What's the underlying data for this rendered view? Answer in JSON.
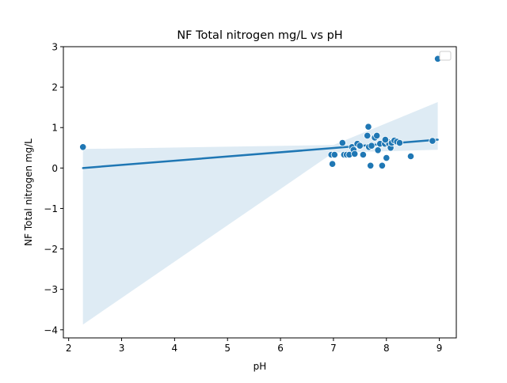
{
  "chart_data": {
    "type": "scatter",
    "title": "NF Total nitrogen mg/L vs pH",
    "xlabel": "pH",
    "ylabel": "NF Total nitrogen mg/L",
    "xlim": [
      1.9,
      9.32
    ],
    "ylim": [
      -4.2,
      3.0
    ],
    "x_ticks": [
      2,
      3,
      4,
      5,
      6,
      7,
      8,
      9
    ],
    "y_ticks": [
      -4,
      -3,
      -2,
      -1,
      0,
      1,
      2,
      3
    ],
    "x_tick_labels": [
      "2",
      "3",
      "4",
      "5",
      "6",
      "7",
      "8",
      "9"
    ],
    "y_tick_labels": [
      "−4",
      "−3",
      "−2",
      "−1",
      "0",
      "1",
      "2",
      "3"
    ],
    "grid": false,
    "legend": "top-right, empty",
    "colors": {
      "points": "#1f77b4",
      "line": "#1f77b4",
      "band": "#1f77b4"
    },
    "points": [
      [
        2.27,
        0.52
      ],
      [
        8.97,
        2.7
      ],
      [
        8.87,
        0.67
      ],
      [
        8.46,
        0.29
      ],
      [
        6.96,
        0.33
      ],
      [
        6.98,
        0.1
      ],
      [
        7.02,
        0.33
      ],
      [
        7.17,
        0.62
      ],
      [
        7.2,
        0.33
      ],
      [
        7.25,
        0.33
      ],
      [
        7.3,
        0.33
      ],
      [
        7.35,
        0.52
      ],
      [
        7.38,
        0.45
      ],
      [
        7.4,
        0.35
      ],
      [
        7.45,
        0.6
      ],
      [
        7.5,
        0.55
      ],
      [
        7.56,
        0.33
      ],
      [
        7.64,
        0.8
      ],
      [
        7.66,
        1.02
      ],
      [
        7.67,
        0.52
      ],
      [
        7.7,
        0.06
      ],
      [
        7.72,
        0.55
      ],
      [
        7.78,
        0.75
      ],
      [
        7.82,
        0.8
      ],
      [
        7.84,
        0.44
      ],
      [
        7.88,
        0.6
      ],
      [
        7.92,
        0.06
      ],
      [
        7.97,
        0.6
      ],
      [
        8.0,
        0.25
      ],
      [
        8.02,
        0.65
      ],
      [
        8.05,
        0.6
      ],
      [
        8.08,
        0.5
      ],
      [
        8.1,
        0.62
      ],
      [
        8.15,
        0.68
      ],
      [
        8.2,
        0.65
      ],
      [
        8.25,
        0.62
      ],
      [
        7.98,
        0.7
      ]
    ],
    "regression": {
      "x": [
        2.27,
        8.97
      ],
      "y": [
        0.0,
        0.7
      ]
    },
    "confidence_band": {
      "x": [
        2.27,
        8.97
      ],
      "upper": [
        0.47,
        1.63
      ],
      "lower": [
        -3.87,
        0.45
      ],
      "upper_at_7": 0.57,
      "lower_at_7": 0.38
    }
  }
}
